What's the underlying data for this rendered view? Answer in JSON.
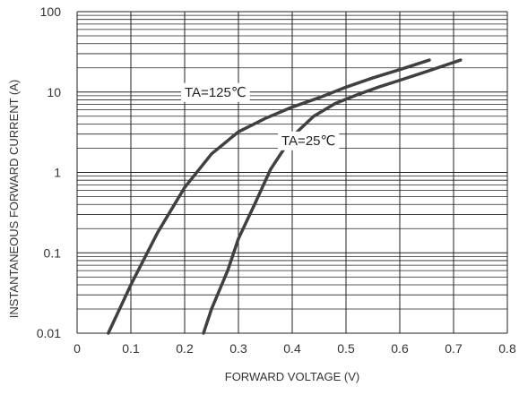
{
  "chart_data": {
    "type": "line",
    "title": "",
    "xlabel": "FORWARD VOLTAGE (V)",
    "ylabel": "INSTANTANEOUS FORWARD CURRENT (A)",
    "x_scale": "linear",
    "y_scale": "log",
    "xlim": [
      0,
      0.8
    ],
    "ylim": [
      0.01,
      100
    ],
    "x_ticks": [
      0,
      0.1,
      0.2,
      0.3,
      0.4,
      0.5,
      0.6,
      0.7,
      0.8
    ],
    "x_tick_labels": [
      "0",
      "0.1",
      "0.2",
      "0.3",
      "0.4",
      "0.5",
      "0.6",
      "0.7",
      "0.8"
    ],
    "y_ticks": [
      0.01,
      0.1,
      1,
      10,
      100
    ],
    "y_tick_labels": [
      "0.01",
      "0.1",
      "1",
      "10",
      "100"
    ],
    "grid": true,
    "series": [
      {
        "name": "TA=125℃",
        "x": [
          0.058,
          0.1,
          0.15,
          0.2,
          0.25,
          0.3,
          0.35,
          0.4,
          0.45,
          0.5,
          0.55,
          0.6,
          0.655
        ],
        "y": [
          0.01,
          0.04,
          0.18,
          0.65,
          1.7,
          3.2,
          4.7,
          6.5,
          8.5,
          11.5,
          15,
          19,
          25
        ]
      },
      {
        "name": "TA=25℃",
        "x": [
          0.235,
          0.25,
          0.28,
          0.3,
          0.33,
          0.36,
          0.4,
          0.44,
          0.48,
          0.52,
          0.56,
          0.6,
          0.65,
          0.713
        ],
        "y": [
          0.01,
          0.02,
          0.06,
          0.15,
          0.4,
          1.1,
          2.8,
          5,
          7.2,
          9.2,
          11.5,
          14,
          18,
          25
        ]
      }
    ],
    "series_label_x": [
      0.2,
      0.38
    ],
    "series_label_y": [
      10,
      2.5
    ],
    "colors": {
      "series": "#404040",
      "grid": "#222222",
      "text": "#333333",
      "label_bg": "#ffffff"
    }
  }
}
